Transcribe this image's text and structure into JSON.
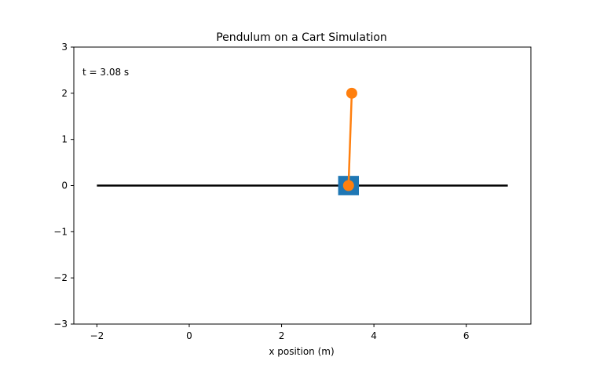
{
  "chart_data": {
    "type": "scatter",
    "title": "Pendulum on a Cart Simulation",
    "xlabel": "x position (m)",
    "ylabel": "",
    "xlim": [
      -2.5,
      7.4
    ],
    "ylim": [
      -3,
      3
    ],
    "grid": false,
    "x_ticks": [
      -2,
      0,
      2,
      4,
      6
    ],
    "x_tick_labels": [
      "−2",
      "0",
      "2",
      "4",
      "6"
    ],
    "y_ticks": [
      -3,
      -2,
      -1,
      0,
      1,
      2,
      3
    ],
    "y_tick_labels": [
      "−3",
      "−2",
      "−1",
      "0",
      "1",
      "2",
      "3"
    ],
    "annotation": "t = 3.08 s",
    "track": {
      "x": [
        -2,
        6.9
      ],
      "y": [
        0,
        0
      ],
      "color": "#000000"
    },
    "cart": {
      "x": 3.45,
      "y": 0,
      "width": 0.45,
      "height": 0.42,
      "color": "#1f77b4"
    },
    "pendulum": {
      "x": [
        3.45,
        3.52
      ],
      "y": [
        0,
        2
      ],
      "color": "#ff7f0e"
    }
  }
}
